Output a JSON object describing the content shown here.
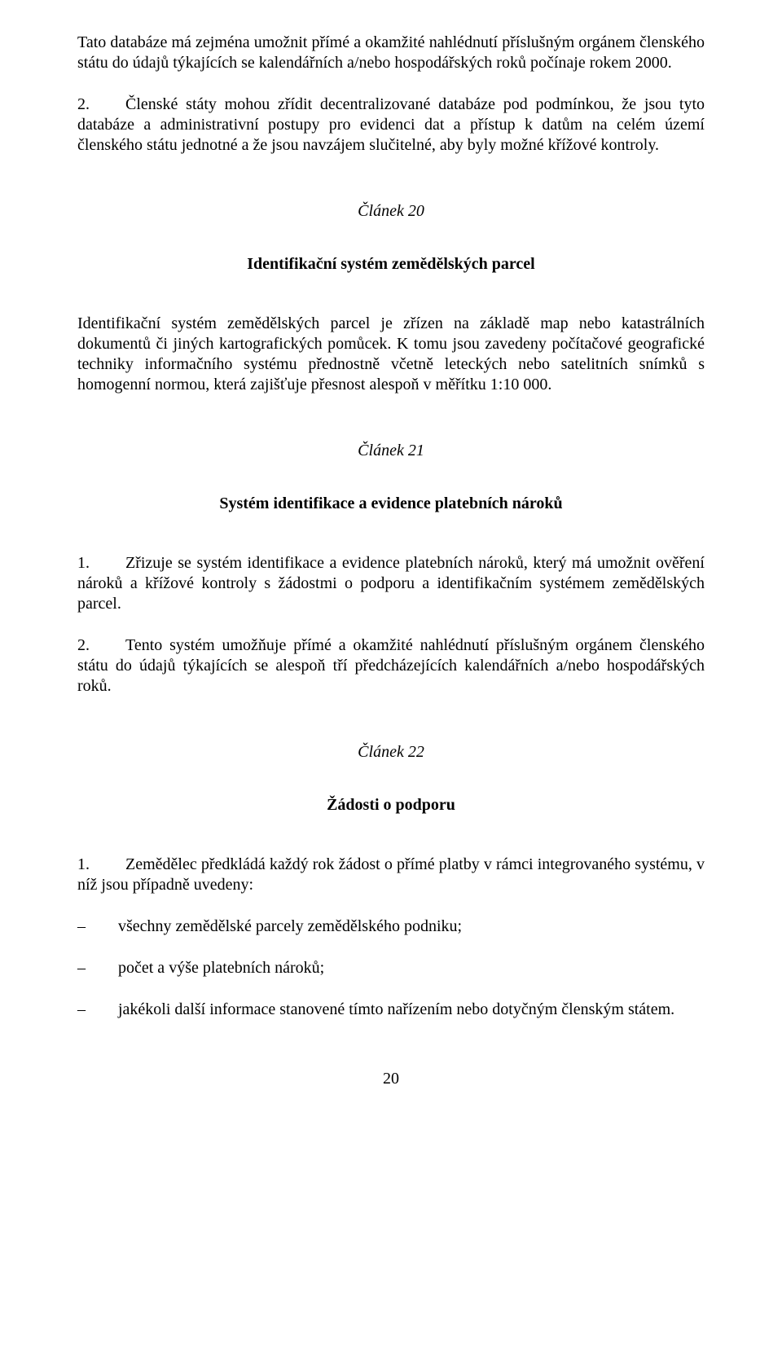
{
  "intro": {
    "p1": "Tato databáze má zejména umožnit přímé a okamžité nahlédnutí příslušným orgánem členského státu do údajů týkajících se kalendářních a/nebo hospodářských roků počínaje rokem 2000.",
    "p2_num": "2.",
    "p2_text": "Členské státy mohou zřídit decentralizované databáze pod podmínkou, že jsou tyto databáze a administrativní postupy pro evidenci dat a přístup k datům na celém území členského státu jednotné a že jsou navzájem slučitelné, aby byly možné křížové kontroly."
  },
  "article20": {
    "label": "Článek 20",
    "title": "Identifikační systém zemědělských parcel",
    "body": "Identifikační systém zemědělských parcel je zřízen na základě map nebo katastrálních dokumentů či jiných kartografických pomůcek. K tomu jsou zavedeny počítačové geografické techniky informačního systému přednostně včetně leteckých nebo satelitních snímků s homogenní normou, která zajišťuje přesnost alespoň v měřítku 1:10 000."
  },
  "article21": {
    "label": "Článek 21",
    "title": "Systém identifikace a evidence platebních nároků",
    "p1_num": "1.",
    "p1_text": "Zřizuje se systém identifikace a evidence platebních nároků, který má umožnit ověření nároků a křížové kontroly s žádostmi o podporu a identifikačním systémem zemědělských parcel.",
    "p2_num": "2.",
    "p2_text": "Tento systém umožňuje přímé a okamžité nahlédnutí příslušným orgánem členského státu do údajů týkajících se alespoň tří předcházejících kalendářních a/nebo hospodářských roků."
  },
  "article22": {
    "label": "Článek 22",
    "title": "Žádosti o podporu",
    "p1_num": "1.",
    "p1_text": "Zemědělec předkládá každý rok žádost o přímé platby v rámci integrovaného systému, v níž jsou případně uvedeny:",
    "dash": "–",
    "items": [
      "všechny zemědělské parcely zemědělského podniku;",
      "počet a výše platebních nároků;",
      "jakékoli další informace stanovené tímto nařízením nebo dotyčným členským státem."
    ]
  },
  "page_number": "20"
}
